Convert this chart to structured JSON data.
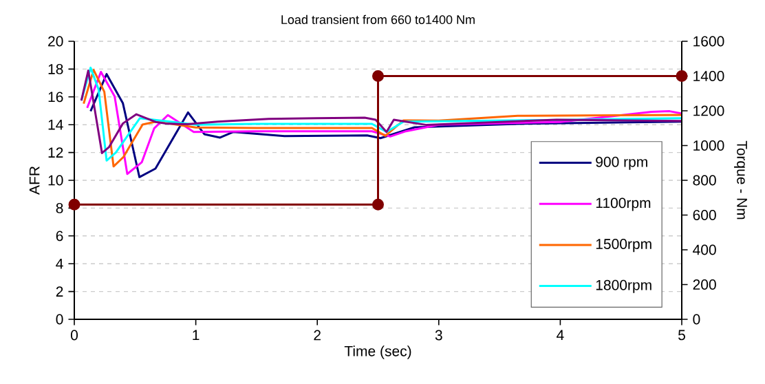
{
  "chart_data": {
    "type": "line",
    "title": "Load transient from 660 to1400 Nm",
    "xlabel": "Time (sec)",
    "ylabel": "AFR",
    "y2label": "Torque - Nm",
    "xlim": [
      0,
      5
    ],
    "xticks": [
      0,
      1,
      2,
      3,
      4,
      5
    ],
    "ylim": [
      0,
      20
    ],
    "yticks": [
      0,
      2,
      4,
      6,
      8,
      10,
      12,
      14,
      16,
      18,
      20
    ],
    "y2lim": [
      0,
      1600
    ],
    "y2ticks": [
      0,
      200,
      400,
      600,
      800,
      1000,
      1200,
      1400,
      1600
    ],
    "grid": "y",
    "legend": "bottom right",
    "marker": "none",
    "line_style": "solid",
    "series": [
      {
        "name": "900 rpm",
        "color": "#000080",
        "x": [
          0.134,
          0.266,
          0.4,
          0.536,
          0.668,
          0.936,
          1.07,
          1.2,
          1.31,
          1.73,
          2.41,
          2.52,
          2.8,
          3.65,
          5.0
        ],
        "values": [
          14.97,
          17.64,
          15.54,
          10.23,
          10.84,
          14.88,
          13.32,
          13.07,
          13.48,
          13.18,
          13.23,
          13.03,
          13.81,
          14.06,
          14.22
        ]
      },
      {
        "name": "1100rpm",
        "color": "#ff00ff",
        "x": [
          0.106,
          0.219,
          0.332,
          0.436,
          0.555,
          0.657,
          0.77,
          0.983,
          1.5,
          2.45,
          2.6,
          2.73,
          3.0,
          4.0,
          4.75,
          4.9,
          5.0
        ],
        "values": [
          15.21,
          17.8,
          16.04,
          10.46,
          11.29,
          13.73,
          14.69,
          13.48,
          13.53,
          13.53,
          13.15,
          13.53,
          14.0,
          14.2,
          14.92,
          14.97,
          14.8
        ]
      },
      {
        "name": "1500rpm",
        "color": "#ff6600",
        "x": [
          0.077,
          0.159,
          0.247,
          0.323,
          0.404,
          0.562,
          0.672,
          1.0,
          1.5,
          2.45,
          2.56,
          2.71,
          3.0,
          3.65,
          5.0
        ],
        "values": [
          15.51,
          17.94,
          16.37,
          11.0,
          11.67,
          14.01,
          14.22,
          13.8,
          13.76,
          13.76,
          13.2,
          14.31,
          14.3,
          14.64,
          14.7
        ]
      },
      {
        "name": "1800rpm",
        "color": "#00ffff",
        "x": [
          0.058,
          0.134,
          0.2,
          0.266,
          0.342,
          0.54,
          1.0,
          1.5,
          2.45,
          2.57,
          2.71,
          4.0,
          5.0
        ],
        "values": [
          15.74,
          18.1,
          16.53,
          11.42,
          12.0,
          14.47,
          14.0,
          14.06,
          14.06,
          13.48,
          14.22,
          14.35,
          14.47
        ]
      },
      {
        "color": "#800080",
        "x": [
          0.058,
          0.115,
          0.228,
          0.285,
          0.4,
          0.511,
          0.672,
          0.747,
          0.93,
          1.18,
          1.6,
          1.99,
          2.39,
          2.48,
          2.57,
          2.63,
          2.9,
          3.97,
          5.0
        ],
        "values": [
          15.74,
          17.89,
          11.96,
          12.38,
          14.09,
          14.75,
          14.19,
          14.09,
          14.03,
          14.22,
          14.42,
          14.47,
          14.5,
          14.36,
          13.48,
          14.36,
          13.98,
          14.36,
          14.27
        ]
      },
      {
        "color": "#800000",
        "axis": "y2",
        "marker": "circle",
        "x": [
          0,
          2.5,
          2.5,
          5
        ],
        "values": [
          660,
          660,
          1400,
          1400
        ]
      }
    ]
  }
}
